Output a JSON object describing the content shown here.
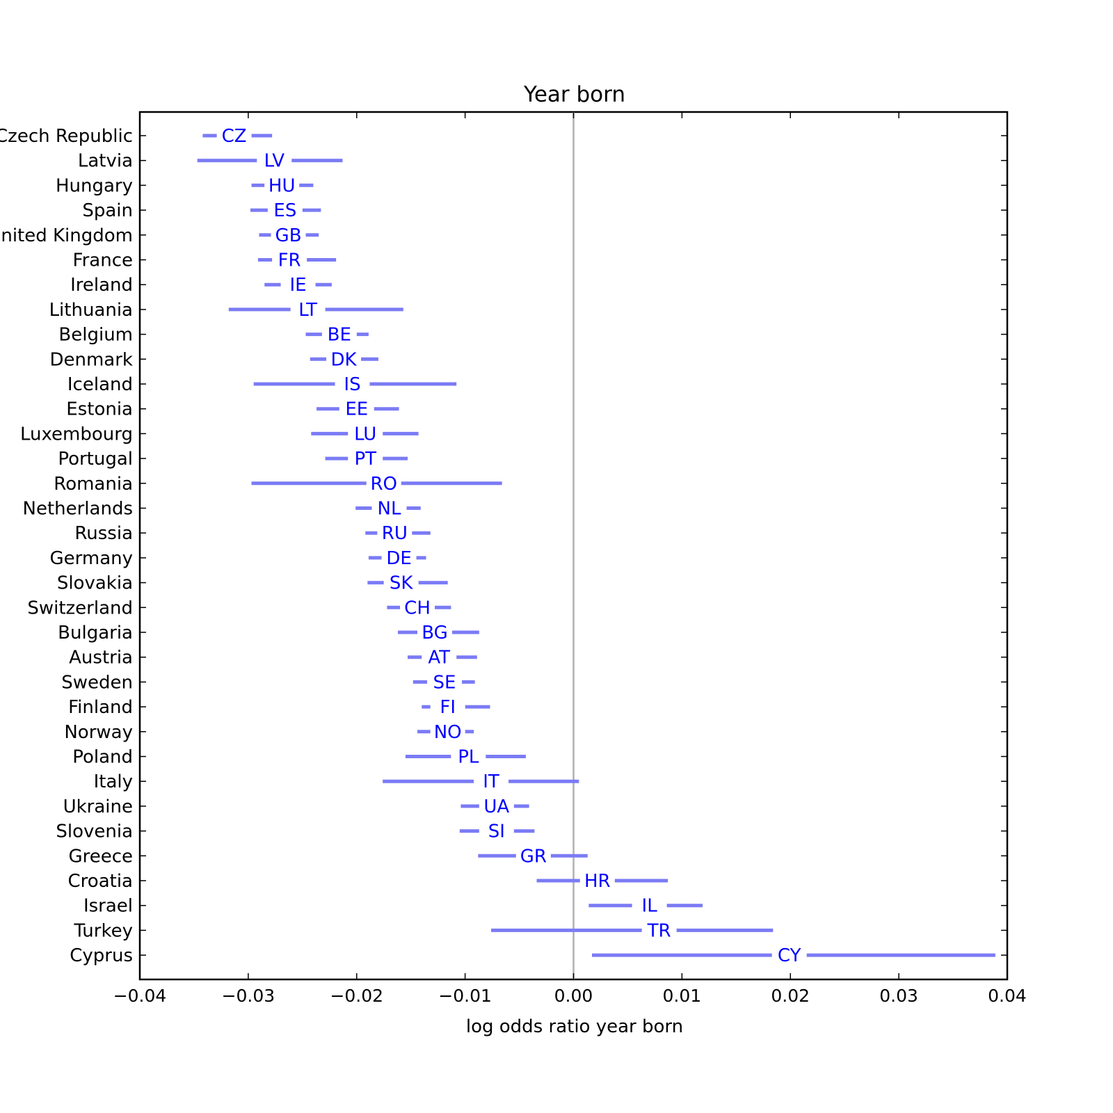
{
  "chart_data": {
    "type": "interval",
    "title": "Year born",
    "xlabel": "log odds ratio year born",
    "xlim": [
      -0.04,
      0.04
    ],
    "xticks": [
      -0.04,
      -0.03,
      -0.02,
      -0.01,
      0.0,
      0.01,
      0.02,
      0.03,
      0.04
    ],
    "xtick_labels": [
      "−0.04",
      "−0.03",
      "−0.02",
      "−0.01",
      "0.00",
      "0.01",
      "0.02",
      "0.03",
      "0.04"
    ],
    "reference_line_x": 0.0,
    "line_color": "#7b7bf5",
    "code_color": "#0000ff",
    "rows": [
      {
        "country": "Czech Republic",
        "code": "CZ",
        "low": -0.0342,
        "estimate": -0.0313,
        "high": -0.0278
      },
      {
        "country": "Latvia",
        "code": "LV",
        "low": -0.0347,
        "estimate": -0.0276,
        "high": -0.0213
      },
      {
        "country": "Hungary",
        "code": "HU",
        "low": -0.0297,
        "estimate": -0.0269,
        "high": -0.024
      },
      {
        "country": "Spain",
        "code": "ES",
        "low": -0.0298,
        "estimate": -0.0266,
        "high": -0.0233
      },
      {
        "country": "United Kingdom",
        "code": "GB",
        "low": -0.029,
        "estimate": -0.0263,
        "high": -0.0235
      },
      {
        "country": "France",
        "code": "FR",
        "low": -0.0291,
        "estimate": -0.0262,
        "high": -0.0219
      },
      {
        "country": "Ireland",
        "code": "IE",
        "low": -0.0285,
        "estimate": -0.0254,
        "high": -0.0223
      },
      {
        "country": "Lithuania",
        "code": "LT",
        "low": -0.0318,
        "estimate": -0.0245,
        "high": -0.0157
      },
      {
        "country": "Belgium",
        "code": "BE",
        "low": -0.0247,
        "estimate": -0.0216,
        "high": -0.0189
      },
      {
        "country": "Denmark",
        "code": "DK",
        "low": -0.0243,
        "estimate": -0.0212,
        "high": -0.018
      },
      {
        "country": "Iceland",
        "code": "IS",
        "low": -0.0295,
        "estimate": -0.0204,
        "high": -0.0108
      },
      {
        "country": "Estonia",
        "code": "EE",
        "low": -0.0237,
        "estimate": -0.02,
        "high": -0.0161
      },
      {
        "country": "Luxembourg",
        "code": "LU",
        "low": -0.0242,
        "estimate": -0.0192,
        "high": -0.0143
      },
      {
        "country": "Portugal",
        "code": "PT",
        "low": -0.0229,
        "estimate": -0.0192,
        "high": -0.0153
      },
      {
        "country": "Romania",
        "code": "RO",
        "low": -0.0297,
        "estimate": -0.0175,
        "high": -0.0066
      },
      {
        "country": "Netherlands",
        "code": "NL",
        "low": -0.0201,
        "estimate": -0.017,
        "high": -0.0141
      },
      {
        "country": "Russia",
        "code": "RU",
        "low": -0.0192,
        "estimate": -0.0165,
        "high": -0.0132
      },
      {
        "country": "Germany",
        "code": "DE",
        "low": -0.0189,
        "estimate": -0.0161,
        "high": -0.0136
      },
      {
        "country": "Slovakia",
        "code": "SK",
        "low": -0.019,
        "estimate": -0.0159,
        "high": -0.0116
      },
      {
        "country": "Switzerland",
        "code": "CH",
        "low": -0.0172,
        "estimate": -0.0144,
        "high": -0.0113
      },
      {
        "country": "Bulgaria",
        "code": "BG",
        "low": -0.0162,
        "estimate": -0.0128,
        "high": -0.0087
      },
      {
        "country": "Austria",
        "code": "AT",
        "low": -0.0153,
        "estimate": -0.0124,
        "high": -0.0089
      },
      {
        "country": "Sweden",
        "code": "SE",
        "low": -0.0148,
        "estimate": -0.0119,
        "high": -0.0091
      },
      {
        "country": "Finland",
        "code": "FI",
        "low": -0.014,
        "estimate": -0.0116,
        "high": -0.0077
      },
      {
        "country": "Norway",
        "code": "NO",
        "low": -0.0144,
        "estimate": -0.0116,
        "high": -0.0092
      },
      {
        "country": "Poland",
        "code": "PL",
        "low": -0.0155,
        "estimate": -0.0097,
        "high": -0.0044
      },
      {
        "country": "Italy",
        "code": "IT",
        "low": -0.0176,
        "estimate": -0.0076,
        "high": 0.0005
      },
      {
        "country": "Ukraine",
        "code": "UA",
        "low": -0.0104,
        "estimate": -0.0071,
        "high": -0.0041
      },
      {
        "country": "Slovenia",
        "code": "SI",
        "low": -0.0105,
        "estimate": -0.0071,
        "high": -0.0036
      },
      {
        "country": "Greece",
        "code": "GR",
        "low": -0.0088,
        "estimate": -0.0037,
        "high": 0.0013
      },
      {
        "country": "Croatia",
        "code": "HR",
        "low": -0.0034,
        "estimate": 0.0022,
        "high": 0.0087
      },
      {
        "country": "Israel",
        "code": "IL",
        "low": 0.0014,
        "estimate": 0.007,
        "high": 0.0119
      },
      {
        "country": "Turkey",
        "code": "TR",
        "low": -0.0076,
        "estimate": 0.0079,
        "high": 0.0184
      },
      {
        "country": "Cyprus",
        "code": "CY",
        "low": 0.0017,
        "estimate": 0.0199,
        "high": 0.0389
      }
    ]
  }
}
